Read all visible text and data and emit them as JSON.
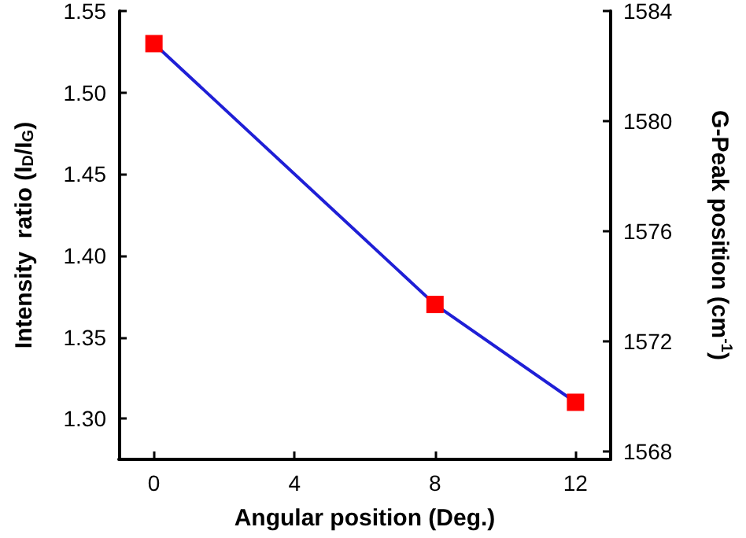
{
  "chart_data": {
    "type": "line",
    "xlabel": "Angular position (Deg.)",
    "ylabel": "Intensity  ratio (I$_{D}$/I$_{G}$)",
    "y2label": "G-Peak position (cm$^{-1}$)",
    "x": [
      0,
      8,
      12
    ],
    "series": [
      {
        "color": "#1f1fd6",
        "colors": [
          "#ff0000",
          "#ff0000",
          "#ff0000"
        ],
        "values": [
          1.53,
          1.37,
          1.31
        ]
      }
    ],
    "xlim": [
      -1,
      13
    ],
    "xticks": [
      0,
      4,
      8,
      12
    ],
    "ylim": [
      1.275,
      1.55
    ],
    "yticks": [
      {
        "value": 1.3,
        "label": "1.30"
      },
      {
        "value": 1.35,
        "label": "1.35"
      },
      {
        "value": 1.4,
        "label": "1.40"
      },
      {
        "value": 1.45,
        "label": "1.45"
      },
      {
        "value": 1.5,
        "label": "1.50"
      },
      {
        "value": 1.55,
        "label": "1.55"
      }
    ],
    "y2lim": [
      1567.7,
      1584
    ],
    "y2ticks": [
      1568,
      1572,
      1576,
      1580,
      1584
    ],
    "marker": "square",
    "line_style": "solid"
  }
}
